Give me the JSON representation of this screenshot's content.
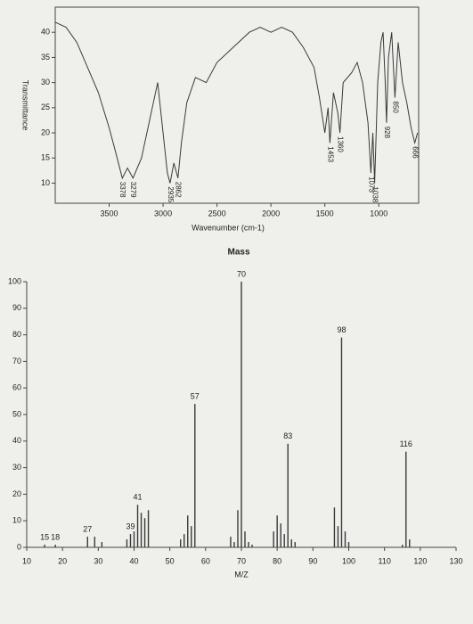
{
  "chart_data": [
    {
      "type": "line",
      "ylabel": "Transmittance",
      "xlabel": "Wavenumber (cm-1)",
      "color": "#3a3a3a",
      "xlim": [
        4000,
        630
      ],
      "ylim": [
        6,
        45
      ],
      "xticks": [
        3500,
        3000,
        2500,
        2000,
        1500,
        1000
      ],
      "yticks": [
        10,
        15,
        20,
        25,
        30,
        35,
        40
      ],
      "x": [
        4000,
        3900,
        3800,
        3700,
        3600,
        3500,
        3450,
        3378,
        3330,
        3279,
        3200,
        3100,
        3050,
        3000,
        2960,
        2935,
        2900,
        2862,
        2830,
        2780,
        2700,
        2600,
        2500,
        2400,
        2300,
        2200,
        2100,
        2000,
        1900,
        1800,
        1700,
        1600,
        1550,
        1500,
        1470,
        1453,
        1420,
        1380,
        1360,
        1330,
        1250,
        1200,
        1150,
        1100,
        1073,
        1055,
        1038,
        1010,
        980,
        960,
        940,
        928,
        910,
        880,
        850,
        820,
        780,
        740,
        700,
        666,
        640
      ],
      "values": [
        42,
        41,
        38,
        33,
        28,
        21,
        17,
        11,
        13,
        11,
        15,
        25,
        30,
        20,
        12,
        10,
        14,
        11,
        18,
        26,
        31,
        30,
        34,
        36,
        38,
        40,
        41,
        40,
        41,
        40,
        37,
        33,
        27,
        20,
        25,
        18,
        28,
        24,
        20,
        30,
        32,
        34,
        30,
        22,
        12,
        20,
        10,
        30,
        38,
        40,
        30,
        22,
        35,
        40,
        27,
        38,
        30,
        26,
        21,
        18,
        20
      ],
      "annotations": [
        3378,
        3279,
        2935,
        2862,
        1453,
        1360,
        1073,
        1038,
        928,
        850,
        666
      ]
    },
    {
      "type": "bar",
      "title": "Mass",
      "xlabel": "M/Z",
      "color": "#3a3a3a",
      "xlim": [
        10,
        130
      ],
      "ylim": [
        0,
        100
      ],
      "xticks": [
        10,
        20,
        30,
        40,
        50,
        60,
        70,
        80,
        90,
        100,
        110,
        120,
        130
      ],
      "yticks": [
        0,
        10,
        20,
        30,
        40,
        50,
        60,
        70,
        80,
        90,
        100
      ],
      "x": [
        15,
        18,
        27,
        29,
        31,
        38,
        39,
        40,
        41,
        42,
        43,
        44,
        53,
        54,
        55,
        56,
        57,
        67,
        68,
        69,
        70,
        71,
        72,
        73,
        79,
        80,
        81,
        82,
        83,
        84,
        85,
        96,
        97,
        98,
        99,
        100,
        115,
        116,
        117
      ],
      "values": [
        1,
        1,
        4,
        4,
        2,
        3,
        5,
        6,
        16,
        13,
        11,
        14,
        3,
        5,
        12,
        8,
        54,
        4,
        2,
        14,
        100,
        6,
        2,
        1,
        6,
        12,
        9,
        5,
        39,
        3,
        2,
        15,
        8,
        79,
        6,
        2,
        1,
        36,
        3
      ],
      "annotations": [
        15,
        18,
        27,
        39,
        41,
        57,
        70,
        83,
        98,
        116
      ]
    }
  ]
}
